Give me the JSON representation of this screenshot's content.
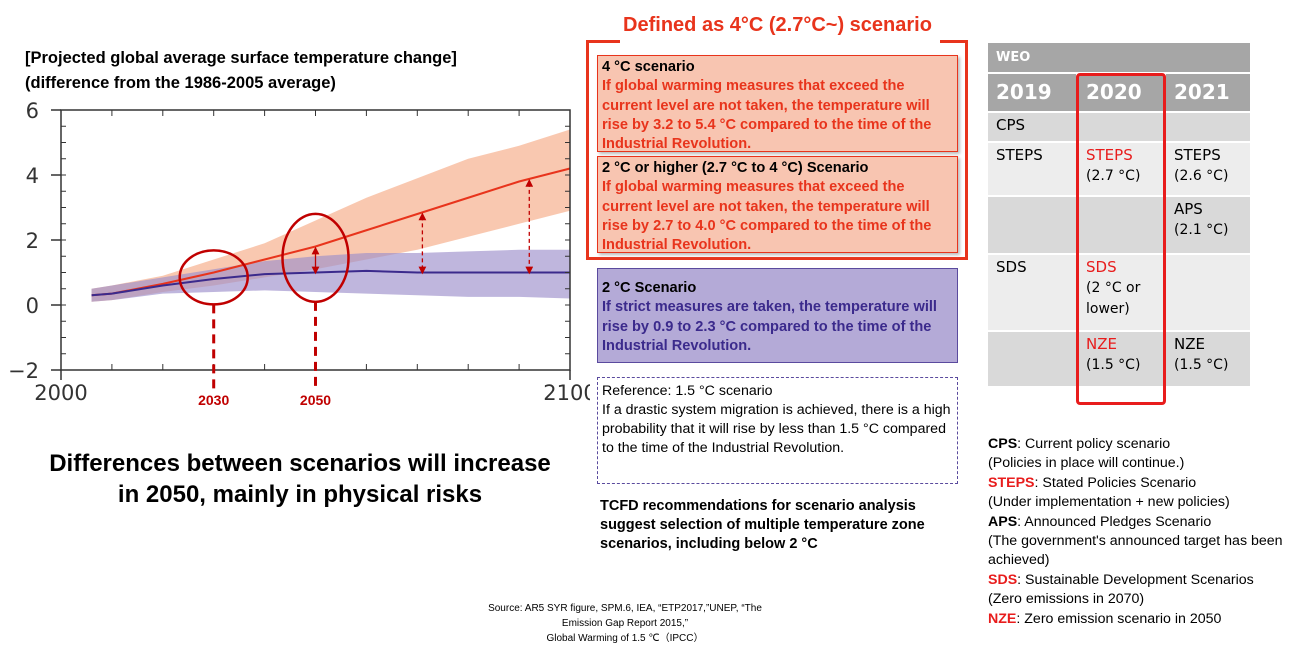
{
  "chart_header": {
    "line1": "[Projected global average surface temperature change]",
    "line2": "(difference from the 1986-2005 average)"
  },
  "chart_data": {
    "type": "line",
    "title": "",
    "xlim": [
      2000,
      2100
    ],
    "ylim": [
      -2,
      6
    ],
    "xticks": [
      "2000",
      "2100"
    ],
    "yticks": [
      "6",
      "4",
      "2",
      "0",
      "−2"
    ],
    "series": [
      {
        "color": "#e8341c",
        "band_color": "#f6b08f",
        "x": [
          2006,
          2010,
          2020,
          2030,
          2040,
          2050,
          2060,
          2070,
          2080,
          2090,
          2100
        ],
        "values": [
          0.3,
          0.35,
          0.65,
          1.0,
          1.4,
          1.8,
          2.3,
          2.8,
          3.3,
          3.8,
          4.2
        ],
        "lower": [
          0.1,
          0.15,
          0.4,
          0.6,
          0.85,
          1.1,
          1.4,
          1.7,
          2.1,
          2.5,
          2.9
        ],
        "upper": [
          0.5,
          0.6,
          0.9,
          1.4,
          1.9,
          2.6,
          3.3,
          3.9,
          4.5,
          4.9,
          5.4
        ]
      },
      {
        "color": "#3b2a8c",
        "band_color": "#9c8fcb",
        "x": [
          2006,
          2010,
          2020,
          2030,
          2040,
          2050,
          2060,
          2070,
          2080,
          2090,
          2100
        ],
        "values": [
          0.3,
          0.35,
          0.6,
          0.8,
          0.95,
          1.0,
          1.05,
          1.0,
          1.0,
          1.0,
          1.0
        ],
        "lower": [
          0.1,
          0.15,
          0.35,
          0.4,
          0.45,
          0.4,
          0.35,
          0.3,
          0.25,
          0.25,
          0.2
        ],
        "upper": [
          0.5,
          0.6,
          0.85,
          1.1,
          1.35,
          1.5,
          1.6,
          1.6,
          1.65,
          1.7,
          1.7
        ]
      }
    ],
    "annotations": {
      "marker_years": [
        "2030",
        "2050"
      ],
      "gap_arrows_years": [
        2050,
        2071,
        2092
      ]
    }
  },
  "conclusion": "Differences between scenarios will increase in 2050, mainly in physical risks",
  "bracket_heading": "Defined as 4°C (2.7°C~) scenario",
  "scenarios": [
    {
      "title": "4 °C scenario",
      "body": "If global warming measures that exceed the current level are not taken, the temperature will rise by 3.2 to 5.4 °C compared to the time of the Industrial Revolution."
    },
    {
      "title": "2 °C or higher (2.7 °C to 4 °C) Scenario",
      "body": "If global warming measures that exceed the current level are not taken, the temperature will rise by 2.7 to 4.0 °C compared to the time of the Industrial Revolution."
    },
    {
      "title": "2 °C Scenario",
      "body": "If strict measures are taken, the temperature will rise by 0.9 to 2.3 °C compared to the time of the Industrial Revolution."
    }
  ],
  "reference": {
    "title": "Reference: 1.5 °C scenario",
    "body": "If a drastic system migration is achieved, there is a high probability that it will rise by less than 1.5 °C compared to the time of the Industrial Revolution."
  },
  "tcfd_note": "TCFD recommendations for scenario analysis suggest selection of multiple temperature zone scenarios, including below 2 °C",
  "source": {
    "line1": "Source: AR5 SYR figure, SPM.6, IEA, “ETP2017,”UNEP, “The Emission Gap Report 2015,”",
    "line2": "Global Warming of 1.5 ℃（IPCC）"
  },
  "weo_table": {
    "header": "WEO",
    "years": [
      "2019",
      "2020",
      "2021"
    ],
    "rows": [
      {
        "c2019": "CPS",
        "c2020": "",
        "c2020_sub": "",
        "c2021": "",
        "c2021_sub": ""
      },
      {
        "c2019": "STEPS",
        "c2020": "STEPS",
        "c2020_sub": "(2.7 °C)",
        "c2021": "STEPS",
        "c2021_sub": "(2.6 °C)"
      },
      {
        "c2019": "",
        "c2020": "",
        "c2020_sub": "",
        "c2021": "APS",
        "c2021_sub": "(2.1 °C)"
      },
      {
        "c2019": "SDS",
        "c2020": "SDS",
        "c2020_sub": "(2 °C or lower)",
        "c2021": "",
        "c2021_sub": ""
      },
      {
        "c2019": "",
        "c2020": "NZE",
        "c2020_sub": "(1.5 °C)",
        "c2021": "NZE",
        "c2021_sub": "(1.5 °C)"
      }
    ],
    "highlight_color": "#e81c1c"
  },
  "legend": [
    {
      "abbr": "CPS",
      "text": ": Current policy scenario",
      "sub": "(Policies in place will continue.)",
      "red": false
    },
    {
      "abbr": "STEPS",
      "text": ": Stated Policies Scenario",
      "sub": "(Under implementation + new policies)",
      "red": true
    },
    {
      "abbr": "APS",
      "text": ": Announced Pledges Scenario",
      "sub": "(The government's announced target has been achieved)",
      "red": false
    },
    {
      "abbr": "SDS",
      "text": ": Sustainable Development Scenarios",
      "sub": "(Zero emissions in 2070)",
      "red": true
    },
    {
      "abbr": "NZE",
      "text": ": Zero emission scenario in 2050",
      "sub": "",
      "red": true
    }
  ]
}
